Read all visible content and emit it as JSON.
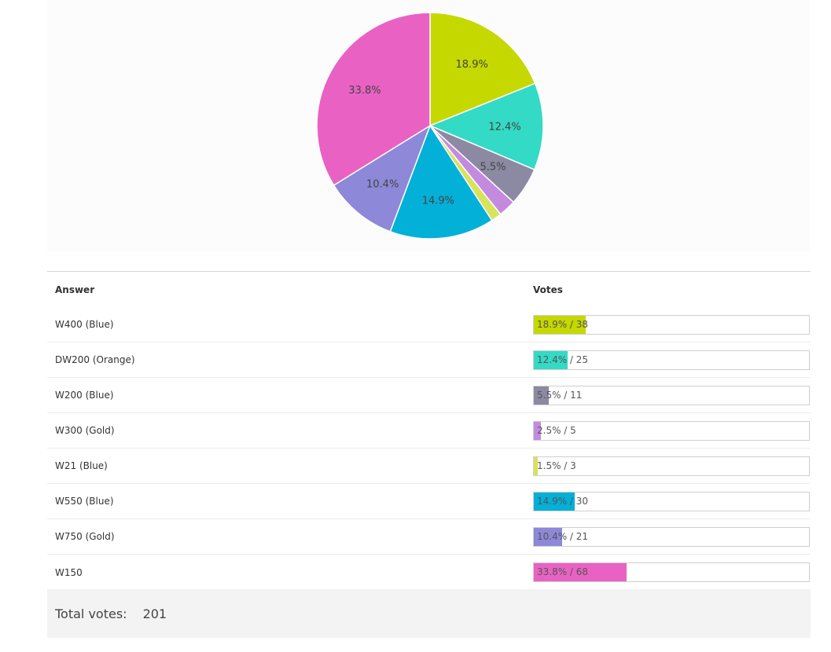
{
  "chart_data": {
    "type": "pie",
    "slices": [
      {
        "label": "W400 (Blue)",
        "value": 38,
        "percent": "18.9%",
        "color": "#c5d800"
      },
      {
        "label": "DW200 (Orange)",
        "value": 25,
        "percent": "12.4%",
        "color": "#33dac5"
      },
      {
        "label": "W200 (Blue)",
        "value": 11,
        "percent": "5.5%",
        "color": "#8c89a3"
      },
      {
        "label": "W300 (Gold)",
        "value": 5,
        "percent": "2.5%",
        "color": "#c38ae0"
      },
      {
        "label": "W21 (Blue)",
        "value": 3,
        "percent": "1.5%",
        "color": "#d6e35b"
      },
      {
        "label": "W550 (Blue)",
        "value": 30,
        "percent": "14.9%",
        "color": "#03b0d8"
      },
      {
        "label": "W750 (Gold)",
        "value": 21,
        "percent": "10.4%",
        "color": "#8d88d8"
      },
      {
        "label": "W150",
        "value": 68,
        "percent": "33.8%",
        "color": "#e962c3"
      }
    ]
  },
  "table": {
    "header_answer": "Answer",
    "header_votes": "Votes",
    "rows": [
      {
        "answer": "W400 (Blue)",
        "votes_label": "18.9% / 38",
        "fraction": 0.189,
        "color": "#c5d800"
      },
      {
        "answer": "DW200 (Orange)",
        "votes_label": "12.4% / 25",
        "fraction": 0.124,
        "color": "#33dac5"
      },
      {
        "answer": "W200 (Blue)",
        "votes_label": "5.5% / 11",
        "fraction": 0.055,
        "color": "#8c89a3"
      },
      {
        "answer": "W300 (Gold)",
        "votes_label": "2.5% / 5",
        "fraction": 0.025,
        "color": "#c38ae0"
      },
      {
        "answer": "W21 (Blue)",
        "votes_label": "1.5% / 3",
        "fraction": 0.015,
        "color": "#d6e35b"
      },
      {
        "answer": "W550 (Blue)",
        "votes_label": "14.9% / 30",
        "fraction": 0.149,
        "color": "#03b0d8"
      },
      {
        "answer": "W750 (Gold)",
        "votes_label": "10.4% / 21",
        "fraction": 0.104,
        "color": "#8d88d8"
      },
      {
        "answer": "W150",
        "votes_label": "33.8% / 68",
        "fraction": 0.338,
        "color": "#e962c3"
      }
    ]
  },
  "total": {
    "label": "Total votes:",
    "value": "201"
  }
}
